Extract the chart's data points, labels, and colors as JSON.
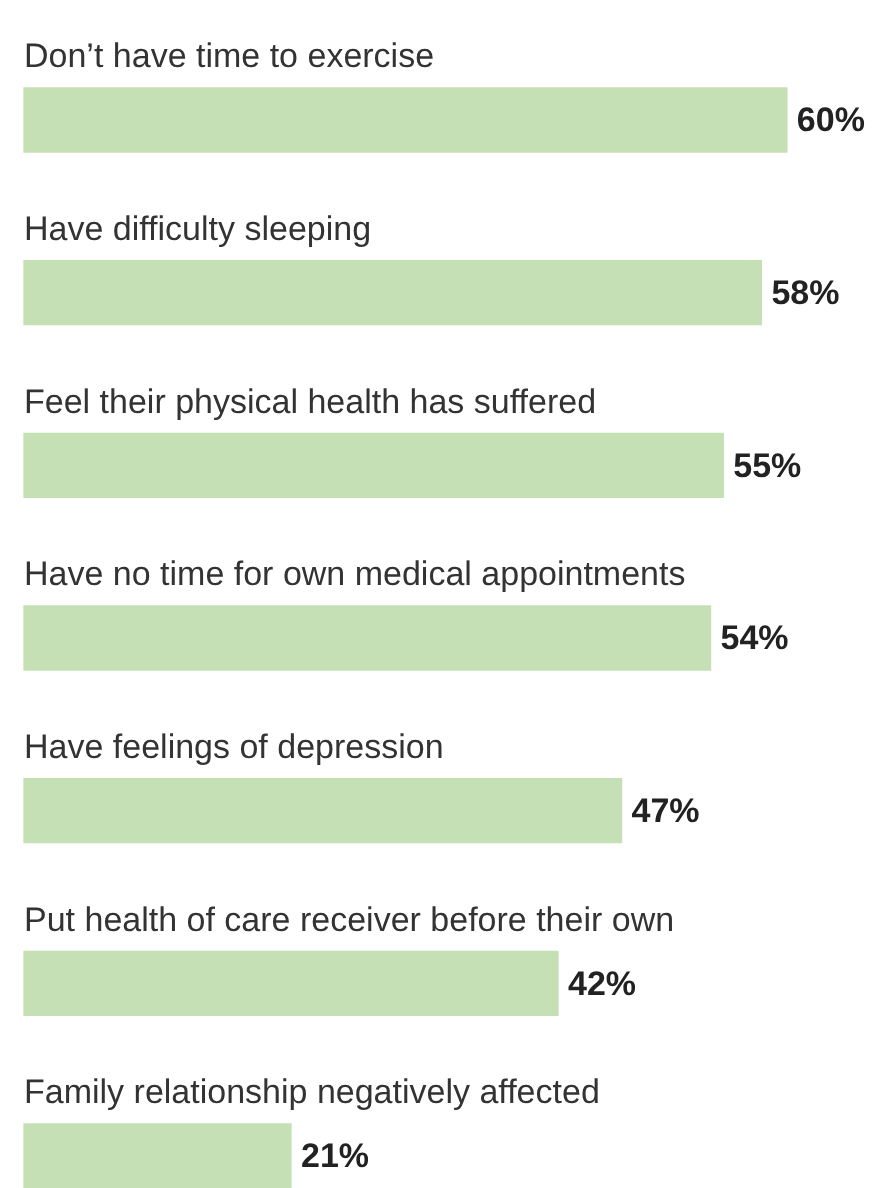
{
  "chart_data": {
    "type": "bar",
    "orientation": "horizontal",
    "categories": [
      "Don’t have time to exercise",
      "Have difficulty sleeping",
      "Feel their physical health has suffered",
      "Have no time for own medical appointments",
      "Have feelings of depression",
      "Put health of care receiver before their own",
      "Family relationship negatively affected"
    ],
    "values": [
      60,
      58,
      55,
      54,
      47,
      42,
      21
    ],
    "value_labels": [
      "60%",
      "58%",
      "55%",
      "54%",
      "47%",
      "42%",
      "21%"
    ],
    "color": "#c5e0b4",
    "legend": false,
    "tick_labels": false
  }
}
